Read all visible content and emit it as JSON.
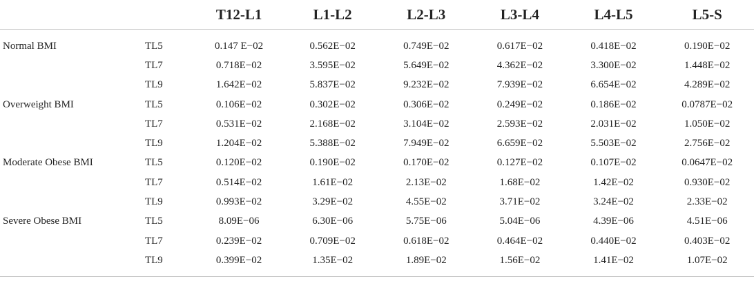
{
  "table": {
    "columns": [
      "",
      "",
      "T12-L1",
      "L1-L2",
      "L2-L3",
      "L3-L4",
      "L4-L5",
      "L5-S"
    ],
    "groups": [
      {
        "label": "Normal BMI",
        "rows": [
          {
            "sub": "TL5",
            "values": [
              "0.147 E−02",
              "0.562E−02",
              "0.749E−02",
              "0.617E−02",
              "0.418E−02",
              "0.190E−02"
            ]
          },
          {
            "sub": "TL7",
            "values": [
              "0.718E−02",
              "3.595E−02",
              "5.649E−02",
              "4.362E−02",
              "3.300E−02",
              "1.448E−02"
            ]
          },
          {
            "sub": "TL9",
            "values": [
              "1.642E−02",
              "5.837E−02",
              "9.232E−02",
              "7.939E−02",
              "6.654E−02",
              "4.289E−02"
            ]
          }
        ]
      },
      {
        "label": "Overweight BMI",
        "rows": [
          {
            "sub": "TL5",
            "values": [
              "0.106E−02",
              "0.302E−02",
              "0.306E−02",
              "0.249E−02",
              "0.186E−02",
              "0.0787E−02"
            ]
          },
          {
            "sub": "TL7",
            "values": [
              "0.531E−02",
              "2.168E−02",
              "3.104E−02",
              "2.593E−02",
              "2.031E−02",
              "1.050E−02"
            ]
          },
          {
            "sub": "TL9",
            "values": [
              "1.204E−02",
              "5.388E−02",
              "7.949E−02",
              "6.659E−02",
              "5.503E−02",
              "2.756E−02"
            ]
          }
        ]
      },
      {
        "label": "Moderate Obese BMI",
        "rows": [
          {
            "sub": "TL5",
            "values": [
              "0.120E−02",
              "0.190E−02",
              "0.170E−02",
              "0.127E−02",
              "0.107E−02",
              "0.0647E−02"
            ]
          },
          {
            "sub": "TL7",
            "values": [
              "0.514E−02",
              "1.61E−02",
              "2.13E−02",
              "1.68E−02",
              "1.42E−02",
              "0.930E−02"
            ]
          },
          {
            "sub": "TL9",
            "values": [
              "0.993E−02",
              "3.29E−02",
              "4.55E−02",
              "3.71E−02",
              "3.24E−02",
              "2.33E−02"
            ]
          }
        ]
      },
      {
        "label": "Severe Obese BMI",
        "rows": [
          {
            "sub": "TL5",
            "values": [
              "8.09E−06",
              "6.30E−06",
              "5.75E−06",
              "5.04E−06",
              "4.39E−06",
              "4.51E−06"
            ]
          },
          {
            "sub": "TL7",
            "values": [
              "0.239E−02",
              "0.709E−02",
              "0.618E−02",
              "0.464E−02",
              "0.440E−02",
              "0.403E−02"
            ]
          },
          {
            "sub": "TL9",
            "values": [
              "0.399E−02",
              "1.35E−02",
              "1.89E−02",
              "1.56E−02",
              "1.41E−02",
              "1.07E−02"
            ]
          }
        ]
      }
    ]
  }
}
